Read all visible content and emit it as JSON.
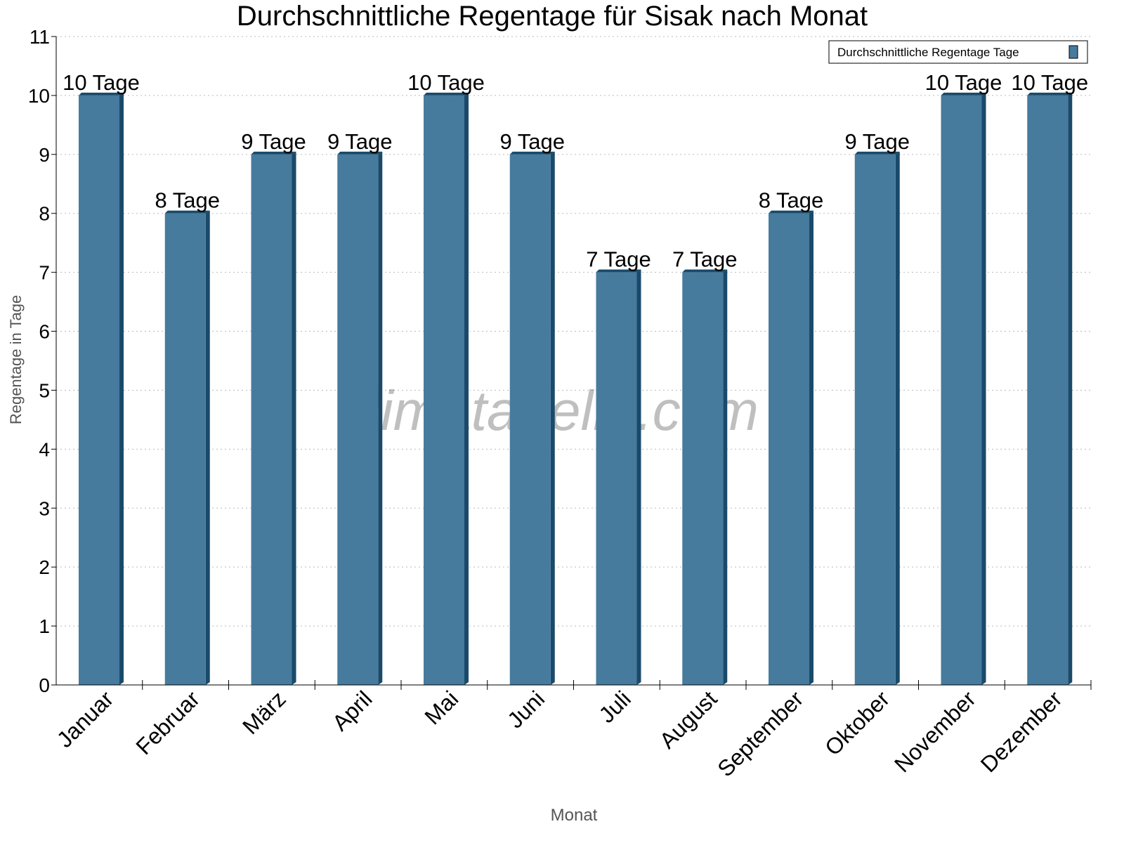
{
  "chart_data": {
    "type": "bar",
    "title": "Durchschnittliche Regentage für Sisak nach Monat",
    "xlabel": "Monat",
    "ylabel": "Regentage in Tage",
    "categories": [
      "Januar",
      "Februar",
      "März",
      "April",
      "Mai",
      "Juni",
      "Juli",
      "August",
      "September",
      "Oktober",
      "November",
      "Dezember"
    ],
    "series": [
      {
        "name": "Durchschnittliche Regentage Tage",
        "values": [
          10,
          8,
          9,
          9,
          10,
          9,
          7,
          7,
          8,
          9,
          10,
          10
        ],
        "color": "#467b9e",
        "side_color": "#1a4a6a"
      }
    ],
    "data_labels": [
      "10 Tage",
      "8 Tage",
      "9 Tage",
      "9 Tage",
      "10 Tage",
      "9 Tage",
      "7 Tage",
      "7 Tage",
      "8 Tage",
      "9 Tage",
      "10 Tage",
      "10 Tage"
    ],
    "ylim": [
      0,
      11
    ],
    "yticks": [
      "0",
      "1",
      "2",
      "3",
      "4",
      "5",
      "6",
      "7",
      "8",
      "9",
      "10",
      "11"
    ],
    "grid": true,
    "legend": "top-right",
    "watermark": "klimatabelle.com"
  }
}
